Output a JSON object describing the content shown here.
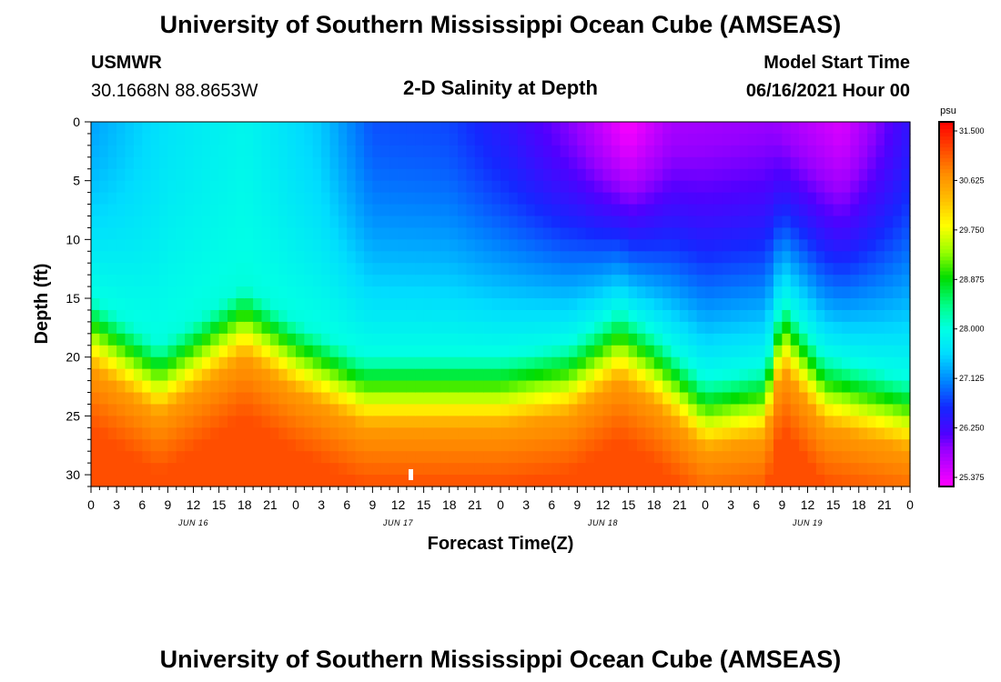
{
  "header": {
    "title": "University of Southern Mississippi Ocean Cube (AMSEAS)",
    "station": "USMWR",
    "coords": "30.1668N  88.8653W",
    "subtitle": "2-D Salinity at Depth",
    "model_label": "Model Start Time",
    "model_time": "06/16/2021 Hour 00"
  },
  "footer": {
    "title": "University of Southern Mississippi Ocean Cube (AMSEAS)"
  },
  "chart_data": {
    "type": "heatmap",
    "title": "2-D Salinity at Depth",
    "xlabel": "Forecast Time(Z)",
    "ylabel": "Depth (ft)",
    "units": "psu",
    "x_hours": [
      0,
      96
    ],
    "ylim": [
      0,
      31
    ],
    "x_tick_labels": [
      "0",
      "3",
      "6",
      "9",
      "12",
      "15",
      "18",
      "21",
      "0",
      "3",
      "6",
      "9",
      "12",
      "15",
      "18",
      "21",
      "0",
      "3",
      "6",
      "9",
      "12",
      "15",
      "18",
      "21",
      "0",
      "3",
      "6",
      "9",
      "12",
      "15",
      "18",
      "21",
      "0"
    ],
    "y_ticks": [
      0,
      5,
      10,
      15,
      20,
      25,
      30
    ],
    "y_tick_labels": [
      "0",
      "5",
      "10",
      "15",
      "20",
      "25",
      "30"
    ],
    "date_labels": [
      {
        "hour": 12,
        "text": "JUN 16"
      },
      {
        "hour": 36,
        "text": "JUN 17"
      },
      {
        "hour": 60,
        "text": "JUN 18"
      },
      {
        "hour": 84,
        "text": "JUN 19"
      }
    ],
    "colorbar": {
      "min": 25.375,
      "max": 31.5,
      "labels": [
        "31.500",
        "30.625",
        "29.750",
        "28.875",
        "28.000",
        "27.125",
        "26.250",
        "25.375"
      ]
    },
    "surface_salinity_psu": [
      {
        "hour": 0,
        "value": 27.3
      },
      {
        "hour": 9,
        "value": 27.7
      },
      {
        "hour": 18,
        "value": 27.9
      },
      {
        "hour": 27,
        "value": 27.5
      },
      {
        "hour": 33,
        "value": 26.9
      },
      {
        "hour": 42,
        "value": 26.85
      },
      {
        "hour": 49,
        "value": 26.5
      },
      {
        "hour": 57,
        "value": 26.0
      },
      {
        "hour": 63,
        "value": 25.4
      },
      {
        "hour": 68,
        "value": 25.9
      },
      {
        "hour": 80,
        "value": 26.0
      },
      {
        "hour": 88,
        "value": 25.6
      },
      {
        "hour": 96,
        "value": 26.5
      }
    ],
    "bottom_salinity_psu": 31.0,
    "halocline_depth_ft": [
      {
        "hour": 0,
        "depth": 19
      },
      {
        "hour": 8,
        "depth": 23
      },
      {
        "hour": 12,
        "depth": 21
      },
      {
        "hour": 18,
        "depth": 18
      },
      {
        "hour": 24,
        "depth": 21
      },
      {
        "hour": 32,
        "depth": 24
      },
      {
        "hour": 48,
        "depth": 24
      },
      {
        "hour": 56,
        "depth": 23
      },
      {
        "hour": 62,
        "depth": 20
      },
      {
        "hour": 66,
        "depth": 22
      },
      {
        "hour": 72,
        "depth": 26
      },
      {
        "hour": 79,
        "depth": 25
      },
      {
        "hour": 81,
        "depth": 19
      },
      {
        "hour": 86,
        "depth": 24
      },
      {
        "hour": 96,
        "depth": 26
      }
    ]
  }
}
